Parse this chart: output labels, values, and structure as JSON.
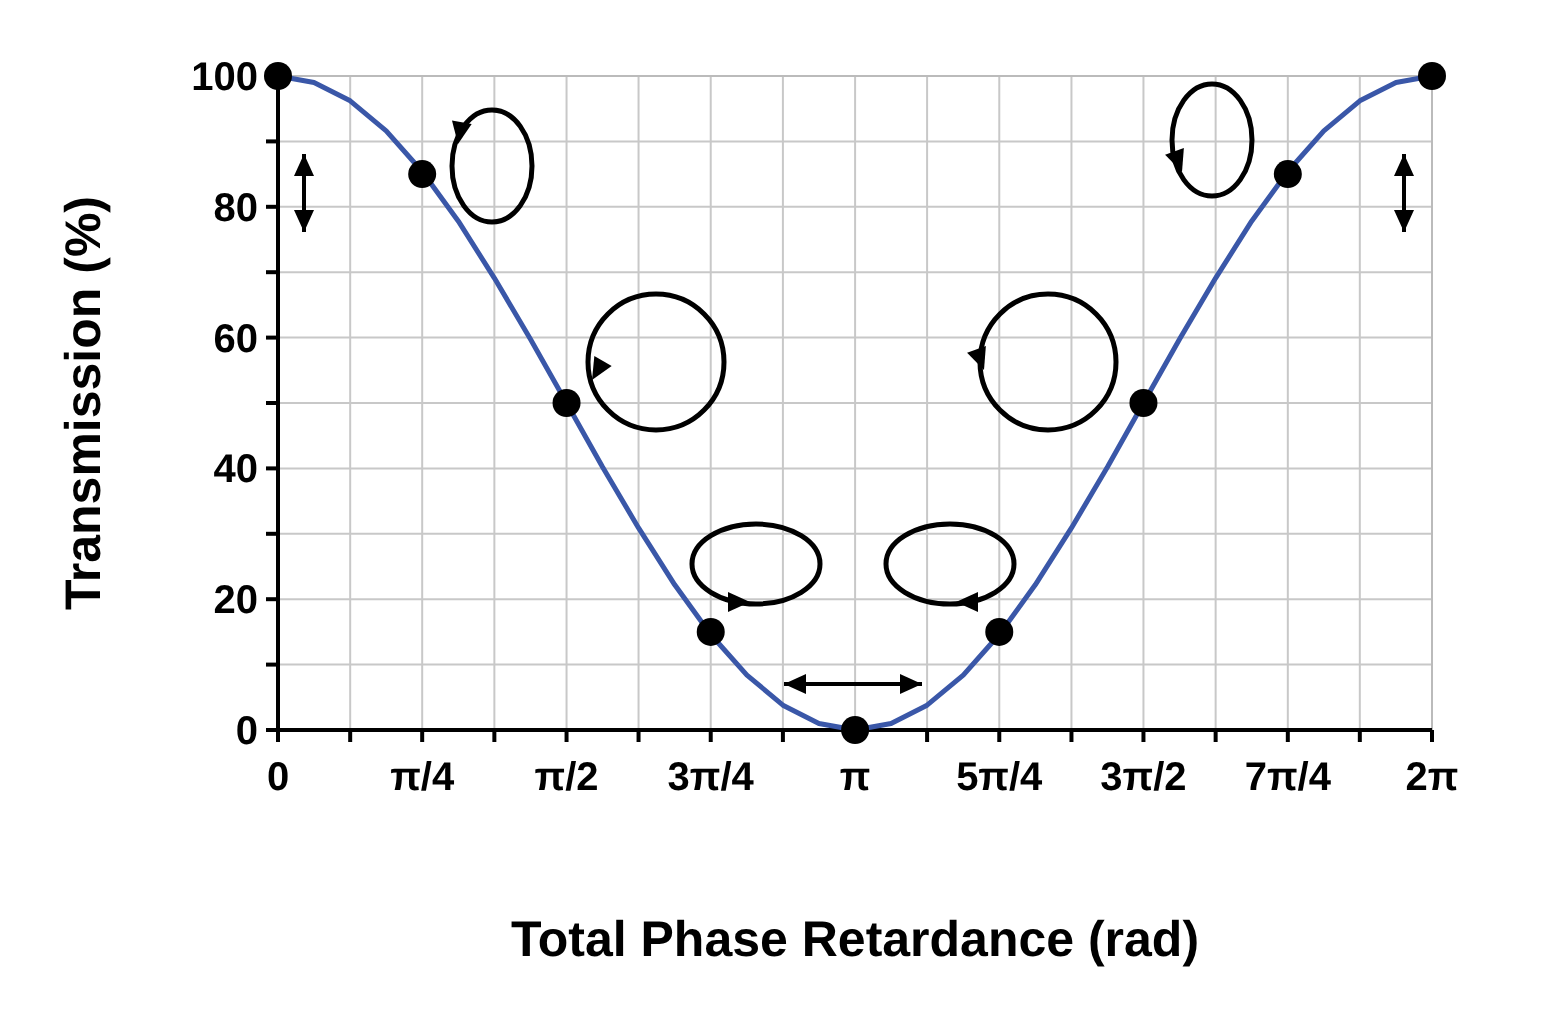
{
  "chart_data": {
    "type": "line",
    "xlabel": "Total Phase Retardance (rad)",
    "ylabel": "Transmission (%)",
    "xlim": [
      0,
      6.283
    ],
    "ylim": [
      0,
      100
    ],
    "xticks": [
      {
        "value": 0,
        "label": "0"
      },
      {
        "value": 0.393,
        "label": null
      },
      {
        "value": 0.785,
        "label": "π/4"
      },
      {
        "value": 1.178,
        "label": null
      },
      {
        "value": 1.571,
        "label": "π/2"
      },
      {
        "value": 1.963,
        "label": null
      },
      {
        "value": 2.356,
        "label": "3π/4"
      },
      {
        "value": 2.749,
        "label": null
      },
      {
        "value": 3.142,
        "label": "π"
      },
      {
        "value": 3.534,
        "label": null
      },
      {
        "value": 3.927,
        "label": "5π/4"
      },
      {
        "value": 4.32,
        "label": null
      },
      {
        "value": 4.712,
        "label": "3π/2"
      },
      {
        "value": 5.105,
        "label": null
      },
      {
        "value": 5.498,
        "label": "7π/4"
      },
      {
        "value": 5.89,
        "label": null
      },
      {
        "value": 6.283,
        "label": "2π"
      }
    ],
    "yticks": [
      0,
      {
        "value": 10,
        "label": null
      },
      20,
      {
        "value": 30,
        "label": null
      },
      40,
      {
        "value": 50,
        "label": null
      },
      60,
      {
        "value": 70,
        "label": null
      },
      80,
      {
        "value": 90,
        "label": null
      },
      100
    ],
    "grid": true,
    "series": [
      {
        "color": "#3a57a8",
        "line_style": "solid",
        "x": [
          0,
          0.196,
          0.393,
          0.589,
          0.785,
          0.982,
          1.178,
          1.374,
          1.571,
          1.767,
          1.963,
          2.16,
          2.356,
          2.553,
          2.749,
          2.945,
          3.142,
          3.338,
          3.534,
          3.731,
          3.927,
          4.123,
          4.32,
          4.516,
          4.712,
          4.909,
          5.105,
          5.301,
          5.498,
          5.694,
          5.89,
          6.087,
          6.283
        ],
        "values": [
          100,
          99,
          96.2,
          91.6,
          85.4,
          77.8,
          69.1,
          59.8,
          50,
          40.2,
          30.9,
          22.2,
          14.6,
          8.4,
          3.8,
          1,
          0,
          1,
          3.8,
          8.4,
          14.6,
          22.2,
          30.9,
          40.2,
          50,
          59.8,
          69.1,
          77.8,
          85.4,
          91.6,
          96.2,
          99,
          100
        ]
      },
      {
        "type": "scatter",
        "color": "#000000",
        "marker": "circle",
        "x": [
          0,
          0.785,
          1.571,
          2.356,
          3.142,
          3.927,
          4.712,
          5.498,
          6.283
        ],
        "values": [
          100,
          85,
          50,
          15,
          0,
          15,
          50,
          85,
          100
        ]
      }
    ]
  }
}
